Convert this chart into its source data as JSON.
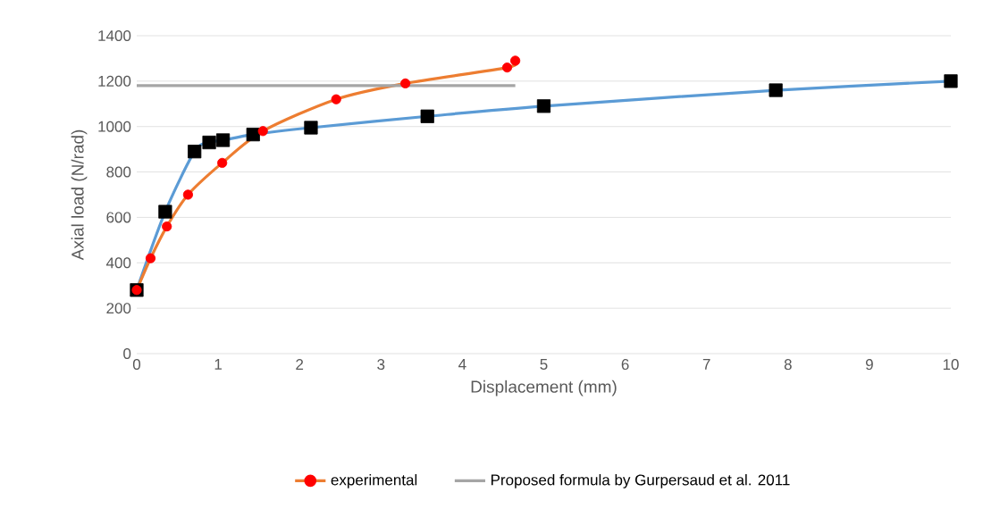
{
  "chart_data": {
    "type": "line",
    "xlabel": "Displacement (mm)",
    "ylabel": "Axial load (N/rad)",
    "xlim": [
      0,
      10
    ],
    "xticks": [
      0,
      1,
      2,
      3,
      4,
      5,
      6,
      7,
      8,
      9,
      10
    ],
    "ylim": [
      0,
      1400
    ],
    "yticks": [
      0,
      200,
      400,
      600,
      800,
      1000,
      1200,
      1400
    ],
    "grid": "y",
    "legend": "bottom",
    "series": [
      {
        "color": "#5b9bd5",
        "marker": "square",
        "colors": [
          "#000000",
          "#000000",
          "#000000",
          "#000000",
          "#000000",
          "#000000",
          "#000000",
          "#000000",
          "#000000",
          "#000000",
          "#000000"
        ],
        "x": [
          0,
          0.35,
          0.71,
          0.89,
          1.06,
          1.43,
          2.14,
          3.57,
          5.0,
          7.85,
          10
        ],
        "values": [
          280,
          625,
          890,
          930,
          940,
          965,
          995,
          1045,
          1090,
          1160,
          1200
        ]
      },
      {
        "name": "experimental",
        "color": "#ed7d31",
        "marker": "circle",
        "colors": [
          "#ff0000",
          "#ff0000",
          "#ff0000",
          "#ff0000",
          "#ff0000",
          "#ff0000",
          "#ff0000",
          "#ff0000",
          "#ff0000",
          "#ff0000"
        ],
        "x": [
          0,
          0.17,
          0.37,
          0.63,
          1.05,
          1.55,
          2.45,
          3.3,
          4.55,
          4.65
        ],
        "values": [
          280,
          420,
          560,
          700,
          840,
          980,
          1120,
          1190,
          1260,
          1290
        ]
      },
      {
        "name": "Proposed formula by Gurpersaud et al. 2011",
        "color": "#a5a5a5",
        "marker": "none",
        "x": [
          0,
          4.65
        ],
        "values": [
          1180,
          1180
        ]
      }
    ]
  }
}
